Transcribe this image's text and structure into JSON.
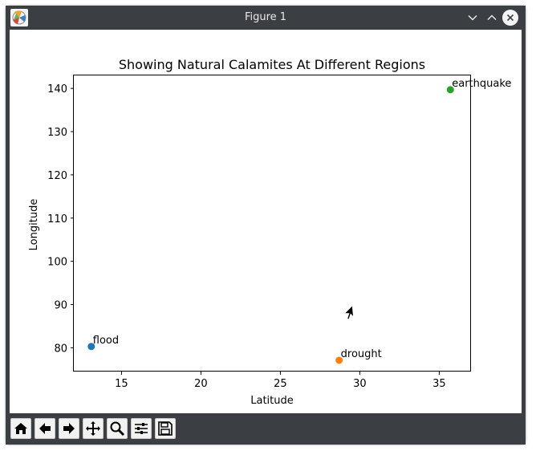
{
  "window": {
    "title": "Figure 1"
  },
  "icons": {
    "app": "matplotlib-figure-icon",
    "minimize": "chevron-down-icon",
    "maximize": "chevron-up-icon",
    "close": "close-icon"
  },
  "toolbar": {
    "tools": [
      "home-icon",
      "back-arrow-icon",
      "forward-arrow-icon",
      "pan-move-icon",
      "zoom-magnifier-icon",
      "configure-subplots-icon",
      "save-disk-icon"
    ]
  },
  "chart_data": {
    "type": "scatter",
    "title": "Showing Natural Calamites At Different Regions",
    "xlabel": "Latitude",
    "ylabel": "Longitude",
    "xlim": [
      12,
      37
    ],
    "ylim": [
      74.5,
      143
    ],
    "xticks": [
      15,
      20,
      25,
      30,
      35
    ],
    "yticks": [
      80,
      90,
      100,
      110,
      120,
      130,
      140
    ],
    "grid": false,
    "points": [
      {
        "label": "flood",
        "x": 13.1,
        "y": 80.3,
        "color": "#1f77b4"
      },
      {
        "label": "drought",
        "x": 28.7,
        "y": 77.1,
        "color": "#ff7f0e"
      },
      {
        "label": "earthquake",
        "x": 35.7,
        "y": 139.7,
        "color": "#2ca02c"
      }
    ]
  }
}
